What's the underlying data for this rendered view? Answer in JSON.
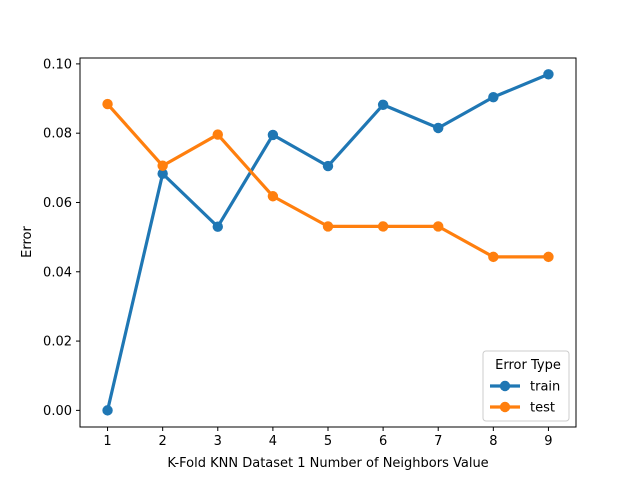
{
  "chart_data": {
    "type": "line",
    "xlabel": "K-Fold KNN Dataset 1 Number of Neighbors Value",
    "ylabel": "Error",
    "x": [
      1,
      2,
      3,
      4,
      5,
      6,
      7,
      8,
      9
    ],
    "ylim": [
      -0.0048,
      0.1017
    ],
    "yticks": [
      0.0,
      0.02,
      0.04,
      0.06,
      0.08,
      0.1
    ],
    "ytick_labels": [
      "0.00",
      "0.02",
      "0.04",
      "0.06",
      "0.08",
      "0.10"
    ],
    "xtick_labels": [
      "1",
      "2",
      "3",
      "4",
      "5",
      "6",
      "7",
      "8",
      "9"
    ],
    "grid": false,
    "legend": {
      "title": "Error Type",
      "position": "lower-right"
    },
    "series": [
      {
        "name": "train",
        "color": "#1f77b4",
        "values": [
          0.0,
          0.0683,
          0.053,
          0.0795,
          0.0705,
          0.0882,
          0.0815,
          0.0904,
          0.097
        ]
      },
      {
        "name": "test",
        "color": "#ff7f0e",
        "values": [
          0.0884,
          0.0706,
          0.0796,
          0.0618,
          0.0531,
          0.0531,
          0.0531,
          0.0443,
          0.0443
        ]
      }
    ]
  }
}
